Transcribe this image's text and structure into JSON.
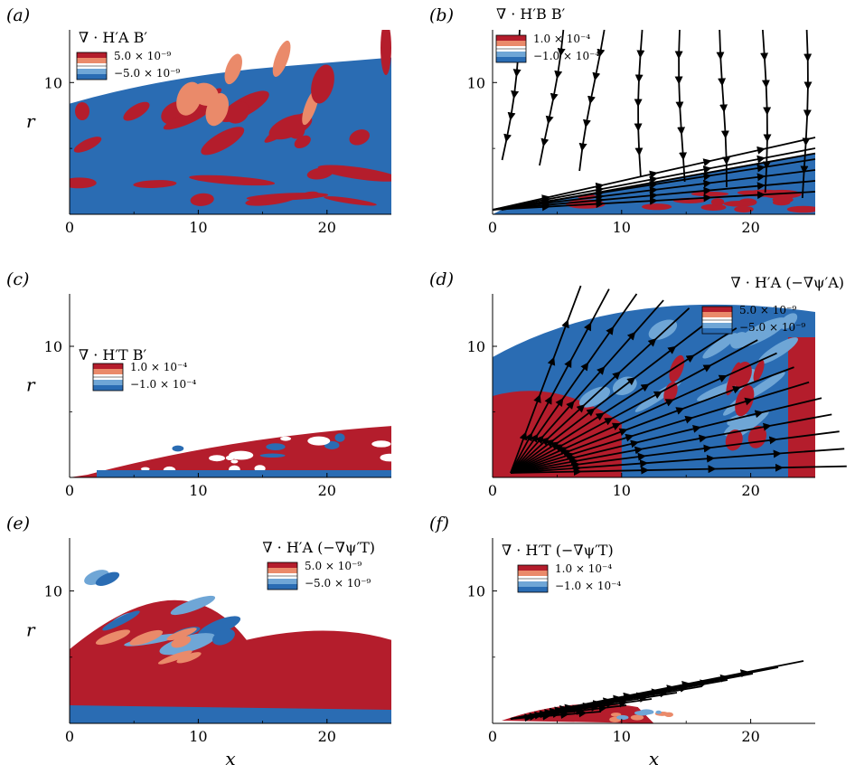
{
  "colors": {
    "red_strong": "#b41d2c",
    "red_light": "#ea8a6a",
    "blue_light": "#6fa6d6",
    "blue_strong": "#2a6cb3",
    "stream": "#000000"
  },
  "chart_data": [
    {
      "type": "heatmap",
      "panel_label": "(a)",
      "title": "∇ · H′A B′",
      "xlabel": "",
      "ylabel": "r",
      "x_ticks": [
        "0",
        "10",
        "20"
      ],
      "y_ticks": [
        "10"
      ],
      "xlim": [
        0,
        25
      ],
      "ylim": [
        0,
        14
      ],
      "legend": {
        "levels": [
          "5.0 × 10⁻⁹",
          "−5.0 × 10⁻⁹"
        ],
        "placement": "top-left"
      },
      "streamlines": false
    },
    {
      "type": "heatmap",
      "panel_label": "(b)",
      "title": "∇ · H′B B′",
      "xlabel": "",
      "ylabel": "",
      "x_ticks": [
        "0",
        "10",
        "20"
      ],
      "y_ticks": [
        "10"
      ],
      "xlim": [
        0,
        25
      ],
      "ylim": [
        0,
        14
      ],
      "legend": {
        "levels": [
          "1.0 × 10⁻⁴",
          "−1.0 × 10⁻⁴"
        ],
        "placement": "top-left"
      },
      "streamlines": true
    },
    {
      "type": "heatmap",
      "panel_label": "(c)",
      "title": "∇ · H′T B′",
      "xlabel": "",
      "ylabel": "r",
      "x_ticks": [
        "0",
        "10",
        "20"
      ],
      "y_ticks": [
        "10"
      ],
      "xlim": [
        0,
        25
      ],
      "ylim": [
        0,
        14
      ],
      "legend": {
        "levels": [
          "1.0 × 10⁻⁴",
          "−1.0 × 10⁻⁴"
        ],
        "placement": "top-left"
      },
      "streamlines": false
    },
    {
      "type": "heatmap",
      "panel_label": "(d)",
      "title": "∇ · H′A (−∇ψ′A)",
      "xlabel": "",
      "ylabel": "",
      "x_ticks": [
        "0",
        "10",
        "20"
      ],
      "y_ticks": [
        "10"
      ],
      "xlim": [
        0,
        25
      ],
      "ylim": [
        0,
        14
      ],
      "legend": {
        "levels": [
          "5.0 × 10⁻⁹",
          "−5.0 × 10⁻⁹"
        ],
        "placement": "top-right"
      },
      "streamlines": true
    },
    {
      "type": "heatmap",
      "panel_label": "(e)",
      "title": "∇ · H′A (−∇ψ′T)",
      "xlabel": "x",
      "ylabel": "r",
      "x_ticks": [
        "0",
        "10",
        "20"
      ],
      "y_ticks": [
        "10"
      ],
      "xlim": [
        0,
        25
      ],
      "ylim": [
        0,
        14
      ],
      "legend": {
        "levels": [
          "5.0 × 10⁻⁹",
          "−5.0 × 10⁻⁹"
        ],
        "placement": "top-right"
      },
      "streamlines": false
    },
    {
      "type": "heatmap",
      "panel_label": "(f)",
      "title": "∇ · H′T (−∇ψ′T)",
      "xlabel": "x",
      "ylabel": "",
      "x_ticks": [
        "0",
        "10",
        "20"
      ],
      "y_ticks": [
        "10"
      ],
      "xlim": [
        0,
        25
      ],
      "ylim": [
        0,
        14
      ],
      "legend": {
        "levels": [
          "1.0 × 10⁻⁴",
          "−1.0 × 10⁻⁴"
        ],
        "placement": "top-left"
      },
      "streamlines": true
    }
  ]
}
